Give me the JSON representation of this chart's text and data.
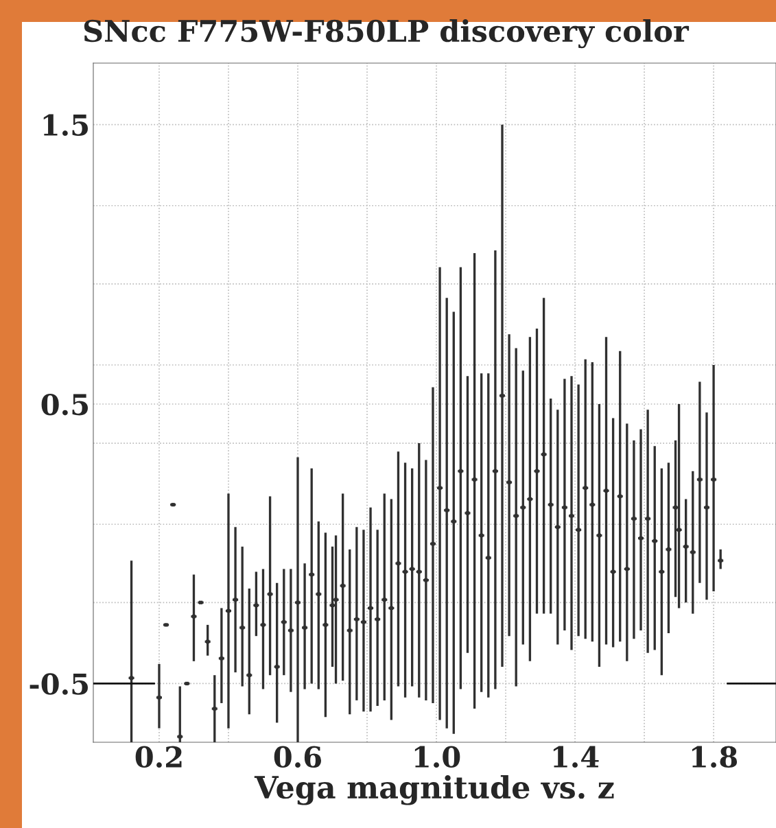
{
  "chart_data": {
    "type": "scatter",
    "title": "SNcc F775W-F850LP discovery color",
    "xlabel": "Vega magnitude vs. z",
    "xlim": [
      0.01,
      1.98
    ],
    "ylim": [
      -0.71,
      1.72
    ],
    "xticks": [
      0.2,
      {
        "value": 0.4,
        "label": null
      },
      0.6,
      {
        "value": 0.8,
        "label": null
      },
      {
        "value": 1.0,
        "label": "1.0"
      },
      {
        "value": 1.2,
        "label": null
      },
      1.4,
      {
        "value": 1.6,
        "label": null
      },
      1.8
    ],
    "yticks": [
      -0.5,
      {
        "value": -0.21,
        "label": null
      },
      {
        "value": 0.07,
        "label": null
      },
      {
        "value": 0.36,
        "label": null
      },
      0.5,
      {
        "value": 0.64,
        "label": null
      },
      {
        "value": 0.93,
        "label": null
      },
      {
        "value": 1.21,
        "label": null
      },
      1.5
    ],
    "grid": true,
    "series": [
      {
        "type": "scatter",
        "color": "#303030",
        "marker": "square",
        "x": [
          0.12,
          0.2,
          0.22,
          0.24,
          0.26,
          0.28,
          0.3,
          0.32,
          0.34,
          0.36,
          0.38,
          0.4,
          0.42,
          0.44,
          0.46,
          0.48,
          0.5,
          0.52,
          0.54,
          0.56,
          0.58,
          0.6,
          0.62,
          0.64,
          0.66,
          0.68,
          0.7,
          0.71,
          0.73,
          0.75,
          0.77,
          0.79,
          0.81,
          0.83,
          0.85,
          0.87,
          0.89,
          0.91,
          0.93,
          0.95,
          0.97,
          0.99,
          1.01,
          1.03,
          1.05,
          1.07,
          1.09,
          1.11,
          1.13,
          1.15,
          1.17,
          1.19,
          1.21,
          1.23,
          1.25,
          1.27,
          1.29,
          1.31,
          1.33,
          1.35,
          1.37,
          1.39,
          1.41,
          1.43,
          1.45,
          1.47,
          1.49,
          1.51,
          1.53,
          1.55,
          1.57,
          1.59,
          1.61,
          1.63,
          1.65,
          1.67,
          1.69,
          1.7,
          1.72,
          1.74,
          1.76,
          1.78,
          1.8,
          1.82
        ],
        "values": [
          -0.48,
          -0.55,
          -0.29,
          0.14,
          -0.69,
          -0.5,
          -0.26,
          -0.21,
          -0.35,
          -0.59,
          -0.41,
          -0.24,
          -0.2,
          -0.3,
          -0.47,
          -0.22,
          -0.29,
          -0.18,
          -0.44,
          -0.28,
          -0.31,
          -0.21,
          -0.3,
          -0.11,
          -0.18,
          -0.29,
          -0.22,
          -0.2,
          -0.15,
          -0.31,
          -0.27,
          -0.28,
          -0.23,
          -0.27,
          -0.2,
          -0.23,
          -0.07,
          -0.1,
          -0.09,
          -0.1,
          -0.13,
          0.0,
          0.2,
          0.12,
          0.08,
          0.26,
          0.11,
          0.23,
          0.03,
          -0.05,
          0.26,
          0.53,
          0.22,
          0.1,
          0.13,
          0.16,
          0.26,
          0.32,
          0.14,
          0.06,
          0.13,
          0.1,
          0.05,
          0.2,
          0.14,
          0.03,
          0.19,
          -0.1,
          0.17,
          -0.09,
          0.09,
          0.02,
          0.09,
          0.01,
          -0.1,
          -0.02,
          0.13,
          0.05,
          -0.01,
          -0.03,
          0.23,
          0.13,
          0.23,
          -0.06
        ],
        "errors": [
          [
            -0.71,
            -0.06
          ],
          [
            -0.66,
            -0.43
          ],
          null,
          null,
          [
            -0.71,
            -0.51
          ],
          null,
          [
            -0.42,
            -0.11
          ],
          null,
          [
            -0.4,
            -0.29
          ],
          [
            -0.71,
            -0.47
          ],
          [
            -0.57,
            -0.23
          ],
          [
            -0.66,
            0.18
          ],
          [
            -0.46,
            0.06
          ],
          [
            -0.51,
            -0.01
          ],
          [
            -0.61,
            -0.16
          ],
          [
            -0.33,
            -0.1
          ],
          [
            -0.52,
            -0.09
          ],
          [
            -0.47,
            0.17
          ],
          [
            -0.64,
            -0.14
          ],
          [
            -0.47,
            -0.09
          ],
          [
            -0.53,
            -0.09
          ],
          [
            -0.71,
            0.31
          ],
          [
            -0.52,
            -0.07
          ],
          [
            -0.5,
            0.27
          ],
          [
            -0.52,
            0.08
          ],
          [
            -0.62,
            0.04
          ],
          [
            -0.44,
            -0.01
          ],
          [
            -0.5,
            0.03
          ],
          [
            -0.49,
            0.18
          ],
          [
            -0.61,
            -0.02
          ],
          [
            -0.56,
            0.06
          ],
          [
            -0.6,
            0.05
          ],
          [
            -0.6,
            0.13
          ],
          [
            -0.58,
            0.05
          ],
          [
            -0.56,
            0.18
          ],
          [
            -0.63,
            0.16
          ],
          [
            -0.51,
            0.33
          ],
          [
            -0.55,
            0.29
          ],
          [
            -0.51,
            0.27
          ],
          [
            -0.55,
            0.36
          ],
          [
            -0.56,
            0.3
          ],
          [
            -0.57,
            0.56
          ],
          [
            -0.63,
            0.99
          ],
          [
            -0.66,
            0.88
          ],
          [
            -0.68,
            0.83
          ],
          [
            -0.52,
            0.99
          ],
          [
            -0.39,
            0.6
          ],
          [
            -0.59,
            1.04
          ],
          [
            -0.53,
            0.61
          ],
          [
            -0.55,
            0.61
          ],
          [
            -0.52,
            1.05
          ],
          [
            -0.44,
            1.5
          ],
          [
            -0.33,
            0.75
          ],
          [
            -0.51,
            0.7
          ],
          [
            -0.36,
            0.62
          ],
          [
            -0.42,
            0.74
          ],
          [
            -0.25,
            0.77
          ],
          [
            -0.25,
            0.88
          ],
          [
            -0.25,
            0.52
          ],
          [
            -0.36,
            0.48
          ],
          [
            -0.31,
            0.59
          ],
          [
            -0.38,
            0.6
          ],
          [
            -0.33,
            0.57
          ],
          [
            -0.34,
            0.66
          ],
          [
            -0.35,
            0.65
          ],
          [
            -0.44,
            0.5
          ],
          [
            -0.36,
            0.74
          ],
          [
            -0.37,
            0.45
          ],
          [
            -0.35,
            0.69
          ],
          [
            -0.42,
            0.43
          ],
          [
            -0.34,
            0.37
          ],
          [
            -0.31,
            0.41
          ],
          [
            -0.39,
            0.48
          ],
          [
            -0.38,
            0.35
          ],
          [
            -0.47,
            0.27
          ],
          [
            -0.32,
            0.29
          ],
          [
            -0.19,
            0.37
          ],
          [
            -0.23,
            0.5
          ],
          [
            -0.21,
            0.16
          ],
          [
            -0.25,
            0.26
          ],
          [
            -0.14,
            0.58
          ],
          [
            -0.2,
            0.47
          ],
          [
            -0.17,
            0.64
          ],
          [
            -0.09,
            -0.02
          ]
        ],
        "xerrors": [
          0.008,
          0.008,
          0.008,
          0.008,
          0.008,
          0.008,
          0.008,
          0.008,
          0.008,
          0.008,
          0.008,
          0.008,
          0.008,
          0.008,
          0.008,
          0.008,
          0.008,
          0.008,
          0.008,
          0.008,
          0.008,
          0.008,
          0.008,
          0.008,
          0.008,
          0.008,
          0.008,
          0.008,
          0.008,
          0.008,
          0.008,
          0.008,
          0.008,
          0.008,
          0.008,
          0.008,
          0.008,
          0.008,
          0.008,
          0.008,
          0.008,
          0.008,
          0.008,
          0.008,
          0.008,
          0.008,
          0.008,
          0.008,
          0.008,
          0.008,
          0.008,
          0.008,
          0.008,
          0.008,
          0.008,
          0.008,
          0.008,
          0.008,
          0.008,
          0.008,
          0.008,
          0.008,
          0.008,
          0.008,
          0.008,
          0.008,
          0.008,
          0.008,
          0.008,
          0.008,
          0.008,
          0.008,
          0.008,
          0.008,
          0.008,
          0.008,
          0.008,
          0.008,
          0.008,
          0.008,
          0.008,
          0.008,
          0.008,
          0.008
        ]
      },
      {
        "type": "line",
        "color": "#111111",
        "x": [
          0.01,
          0.186,
          0.19,
          1.84,
          1.98
        ],
        "values": [
          -0.5,
          -0.5,
          null,
          -0.5,
          -0.5
        ]
      }
    ]
  }
}
